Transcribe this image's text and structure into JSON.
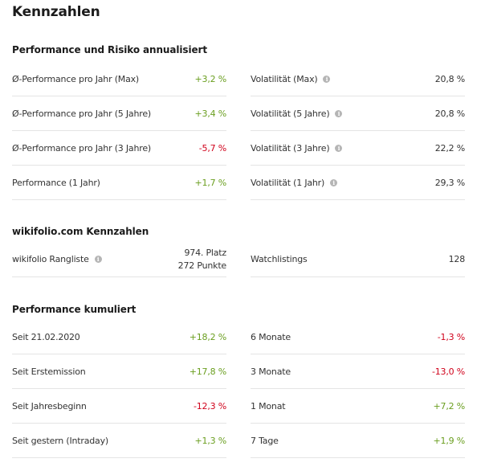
{
  "title": "Kennzahlen",
  "colors": {
    "positive": "#6a9e1f",
    "negative": "#d0021b"
  },
  "sections": {
    "performance_risk": {
      "title": "Performance und Risiko annualisiert",
      "left": [
        {
          "label": "Ø-Performance pro Jahr (Max)",
          "value": "+3,2 %",
          "trend": "pos"
        },
        {
          "label": "Ø-Performance pro Jahr (5 Jahre)",
          "value": "+3,4 %",
          "trend": "pos"
        },
        {
          "label": "Ø-Performance pro Jahr (3 Jahre)",
          "value": "-5,7 %",
          "trend": "neg"
        },
        {
          "label": "Performance (1 Jahr)",
          "value": "+1,7 %",
          "trend": "pos"
        }
      ],
      "right": [
        {
          "label": "Volatilität (Max)",
          "value": "20,8 %",
          "info_icon": "info-icon"
        },
        {
          "label": "Volatilität (5 Jahre)",
          "value": "20,8 %",
          "info_icon": "info-icon"
        },
        {
          "label": "Volatilität (3 Jahre)",
          "value": "22,2 %",
          "info_icon": "info-icon"
        },
        {
          "label": "Volatilität (1 Jahr)",
          "value": "29,3 %",
          "info_icon": "info-icon"
        }
      ]
    },
    "wikifolio": {
      "title": "wikifolio.com Kennzahlen",
      "ranking": {
        "label": "wikifolio Rangliste",
        "place": "974. Platz",
        "points": "272 Punkte",
        "info_icon": "info-icon"
      },
      "watchlistings": {
        "label": "Watchlistings",
        "value": "128"
      }
    },
    "cumulative": {
      "title": "Performance kumuliert",
      "left": [
        {
          "label": "Seit 21.02.2020",
          "value": "+18,2 %",
          "trend": "pos"
        },
        {
          "label": "Seit Erstemission",
          "value": "+17,8 %",
          "trend": "pos"
        },
        {
          "label": "Seit Jahresbeginn",
          "value": "-12,3 %",
          "trend": "neg"
        },
        {
          "label": "Seit gestern (Intraday)",
          "value": "+1,3 %",
          "trend": "pos"
        }
      ],
      "right": [
        {
          "label": "6 Monate",
          "value": "-1,3 %",
          "trend": "neg"
        },
        {
          "label": "3 Monate",
          "value": "-13,0 %",
          "trend": "neg"
        },
        {
          "label": "1 Monat",
          "value": "+7,2 %",
          "trend": "pos"
        },
        {
          "label": "7 Tage",
          "value": "+1,9 %",
          "trend": "pos"
        }
      ]
    }
  }
}
